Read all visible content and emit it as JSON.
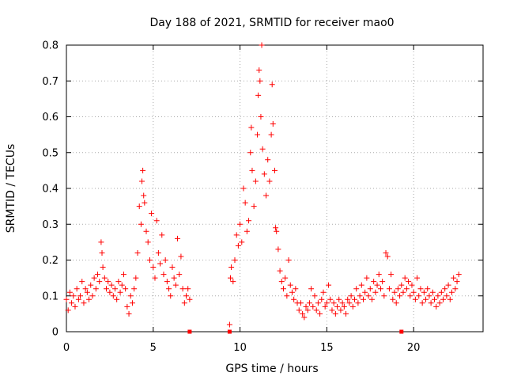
{
  "chart_data": {
    "type": "scatter",
    "title": "Day 188 of 2021, SRMTID for receiver mao0",
    "xlabel": "GPS time / hours",
    "ylabel": "SRMTID / TECUs",
    "xlim": [
      0,
      24
    ],
    "ylim": [
      0,
      0.8
    ],
    "xticks": [
      0,
      5,
      10,
      15,
      20
    ],
    "yticks": [
      0,
      0.1,
      0.2,
      0.3,
      0.4,
      0.5,
      0.6,
      0.7,
      0.8
    ],
    "grid": true,
    "marker": "+",
    "colors": {
      "series": "#ff0000",
      "grid": "#aaaaaa",
      "axis": "#000000"
    },
    "gap_markers_x": [
      7.1,
      9.4,
      19.3
    ],
    "series": [
      {
        "name": "SRMTID",
        "points": [
          [
            0.0,
            0.09
          ],
          [
            0.1,
            0.06
          ],
          [
            0.2,
            0.11
          ],
          [
            0.3,
            0.08
          ],
          [
            0.4,
            0.1
          ],
          [
            0.5,
            0.07
          ],
          [
            0.6,
            0.12
          ],
          [
            0.7,
            0.09
          ],
          [
            0.8,
            0.1
          ],
          [
            0.9,
            0.14
          ],
          [
            1.0,
            0.08
          ],
          [
            1.1,
            0.12
          ],
          [
            1.2,
            0.11
          ],
          [
            1.3,
            0.09
          ],
          [
            1.4,
            0.13
          ],
          [
            1.5,
            0.1
          ],
          [
            1.6,
            0.15
          ],
          [
            1.7,
            0.12
          ],
          [
            1.8,
            0.16
          ],
          [
            1.9,
            0.14
          ],
          [
            2.0,
            0.25
          ],
          [
            2.05,
            0.22
          ],
          [
            2.1,
            0.18
          ],
          [
            2.2,
            0.15
          ],
          [
            2.3,
            0.12
          ],
          [
            2.4,
            0.14
          ],
          [
            2.5,
            0.11
          ],
          [
            2.6,
            0.13
          ],
          [
            2.7,
            0.1
          ],
          [
            2.8,
            0.12
          ],
          [
            2.9,
            0.09
          ],
          [
            3.0,
            0.14
          ],
          [
            3.1,
            0.11
          ],
          [
            3.2,
            0.13
          ],
          [
            3.3,
            0.16
          ],
          [
            3.4,
            0.12
          ],
          [
            3.5,
            0.07
          ],
          [
            3.6,
            0.05
          ],
          [
            3.7,
            0.1
          ],
          [
            3.8,
            0.08
          ],
          [
            3.9,
            0.12
          ],
          [
            4.0,
            0.15
          ],
          [
            4.1,
            0.22
          ],
          [
            4.2,
            0.35
          ],
          [
            4.3,
            0.3
          ],
          [
            4.35,
            0.42
          ],
          [
            4.4,
            0.45
          ],
          [
            4.45,
            0.38
          ],
          [
            4.5,
            0.36
          ],
          [
            4.6,
            0.28
          ],
          [
            4.7,
            0.25
          ],
          [
            4.8,
            0.2
          ],
          [
            4.9,
            0.33
          ],
          [
            5.0,
            0.18
          ],
          [
            5.1,
            0.15
          ],
          [
            5.2,
            0.31
          ],
          [
            5.3,
            0.22
          ],
          [
            5.4,
            0.19
          ],
          [
            5.5,
            0.27
          ],
          [
            5.6,
            0.16
          ],
          [
            5.7,
            0.2
          ],
          [
            5.8,
            0.14
          ],
          [
            5.9,
            0.12
          ],
          [
            6.0,
            0.1
          ],
          [
            6.1,
            0.18
          ],
          [
            6.2,
            0.15
          ],
          [
            6.3,
            0.13
          ],
          [
            6.4,
            0.26
          ],
          [
            6.5,
            0.16
          ],
          [
            6.6,
            0.21
          ],
          [
            6.7,
            0.12
          ],
          [
            6.8,
            0.08
          ],
          [
            6.9,
            0.1
          ],
          [
            7.0,
            0.12
          ],
          [
            7.1,
            0.09
          ],
          [
            9.4,
            0.02
          ],
          [
            9.45,
            0.15
          ],
          [
            9.5,
            0.18
          ],
          [
            9.6,
            0.14
          ],
          [
            9.7,
            0.2
          ],
          [
            9.8,
            0.27
          ],
          [
            9.9,
            0.24
          ],
          [
            10.0,
            0.3
          ],
          [
            10.1,
            0.25
          ],
          [
            10.2,
            0.4
          ],
          [
            10.3,
            0.36
          ],
          [
            10.4,
            0.28
          ],
          [
            10.5,
            0.31
          ],
          [
            10.6,
            0.5
          ],
          [
            10.65,
            0.57
          ],
          [
            10.7,
            0.45
          ],
          [
            10.8,
            0.35
          ],
          [
            10.9,
            0.42
          ],
          [
            11.0,
            0.55
          ],
          [
            11.05,
            0.66
          ],
          [
            11.1,
            0.73
          ],
          [
            11.15,
            0.7
          ],
          [
            11.2,
            0.6
          ],
          [
            11.25,
            0.8
          ],
          [
            11.3,
            0.51
          ],
          [
            11.4,
            0.44
          ],
          [
            11.5,
            0.38
          ],
          [
            11.6,
            0.48
          ],
          [
            11.7,
            0.42
          ],
          [
            11.8,
            0.55
          ],
          [
            11.85,
            0.69
          ],
          [
            11.9,
            0.58
          ],
          [
            12.0,
            0.45
          ],
          [
            12.05,
            0.29
          ],
          [
            12.1,
            0.28
          ],
          [
            12.2,
            0.23
          ],
          [
            12.3,
            0.17
          ],
          [
            12.4,
            0.14
          ],
          [
            12.5,
            0.12
          ],
          [
            12.6,
            0.15
          ],
          [
            12.7,
            0.1
          ],
          [
            12.8,
            0.2
          ],
          [
            12.9,
            0.13
          ],
          [
            13.0,
            0.11
          ],
          [
            13.1,
            0.09
          ],
          [
            13.2,
            0.12
          ],
          [
            13.3,
            0.08
          ],
          [
            13.4,
            0.06
          ],
          [
            13.5,
            0.08
          ],
          [
            13.6,
            0.05
          ],
          [
            13.7,
            0.04
          ],
          [
            13.8,
            0.07
          ],
          [
            13.9,
            0.06
          ],
          [
            14.0,
            0.08
          ],
          [
            14.1,
            0.12
          ],
          [
            14.2,
            0.07
          ],
          [
            14.3,
            0.1
          ],
          [
            14.4,
            0.06
          ],
          [
            14.5,
            0.08
          ],
          [
            14.6,
            0.05
          ],
          [
            14.7,
            0.09
          ],
          [
            14.8,
            0.11
          ],
          [
            14.9,
            0.07
          ],
          [
            15.0,
            0.08
          ],
          [
            15.1,
            0.13
          ],
          [
            15.2,
            0.09
          ],
          [
            15.3,
            0.06
          ],
          [
            15.4,
            0.08
          ],
          [
            15.5,
            0.05
          ],
          [
            15.6,
            0.07
          ],
          [
            15.7,
            0.09
          ],
          [
            15.8,
            0.06
          ],
          [
            15.9,
            0.08
          ],
          [
            16.0,
            0.07
          ],
          [
            16.1,
            0.05
          ],
          [
            16.2,
            0.09
          ],
          [
            16.3,
            0.08
          ],
          [
            16.4,
            0.1
          ],
          [
            16.5,
            0.07
          ],
          [
            16.6,
            0.09
          ],
          [
            16.7,
            0.12
          ],
          [
            16.8,
            0.08
          ],
          [
            16.9,
            0.1
          ],
          [
            17.0,
            0.13
          ],
          [
            17.1,
            0.09
          ],
          [
            17.2,
            0.11
          ],
          [
            17.3,
            0.15
          ],
          [
            17.4,
            0.1
          ],
          [
            17.5,
            0.12
          ],
          [
            17.6,
            0.09
          ],
          [
            17.7,
            0.14
          ],
          [
            17.8,
            0.11
          ],
          [
            17.9,
            0.13
          ],
          [
            18.0,
            0.16
          ],
          [
            18.1,
            0.12
          ],
          [
            18.2,
            0.14
          ],
          [
            18.3,
            0.1
          ],
          [
            18.4,
            0.22
          ],
          [
            18.5,
            0.21
          ],
          [
            18.6,
            0.12
          ],
          [
            18.7,
            0.16
          ],
          [
            18.8,
            0.09
          ],
          [
            18.9,
            0.11
          ],
          [
            19.0,
            0.08
          ],
          [
            19.1,
            0.12
          ],
          [
            19.2,
            0.1
          ],
          [
            19.3,
            0.13
          ],
          [
            19.4,
            0.11
          ],
          [
            19.5,
            0.15
          ],
          [
            19.6,
            0.12
          ],
          [
            19.7,
            0.14
          ],
          [
            19.8,
            0.1
          ],
          [
            19.9,
            0.13
          ],
          [
            20.0,
            0.11
          ],
          [
            20.1,
            0.09
          ],
          [
            20.2,
            0.15
          ],
          [
            20.3,
            0.1
          ],
          [
            20.4,
            0.12
          ],
          [
            20.5,
            0.08
          ],
          [
            20.6,
            0.11
          ],
          [
            20.7,
            0.09
          ],
          [
            20.8,
            0.12
          ],
          [
            20.9,
            0.1
          ],
          [
            21.0,
            0.08
          ],
          [
            21.1,
            0.11
          ],
          [
            21.2,
            0.09
          ],
          [
            21.3,
            0.07
          ],
          [
            21.4,
            0.1
          ],
          [
            21.5,
            0.08
          ],
          [
            21.6,
            0.11
          ],
          [
            21.7,
            0.09
          ],
          [
            21.8,
            0.12
          ],
          [
            21.9,
            0.1
          ],
          [
            22.0,
            0.13
          ],
          [
            22.1,
            0.09
          ],
          [
            22.2,
            0.11
          ],
          [
            22.3,
            0.15
          ],
          [
            22.4,
            0.12
          ],
          [
            22.5,
            0.14
          ],
          [
            22.6,
            0.16
          ]
        ]
      }
    ]
  }
}
